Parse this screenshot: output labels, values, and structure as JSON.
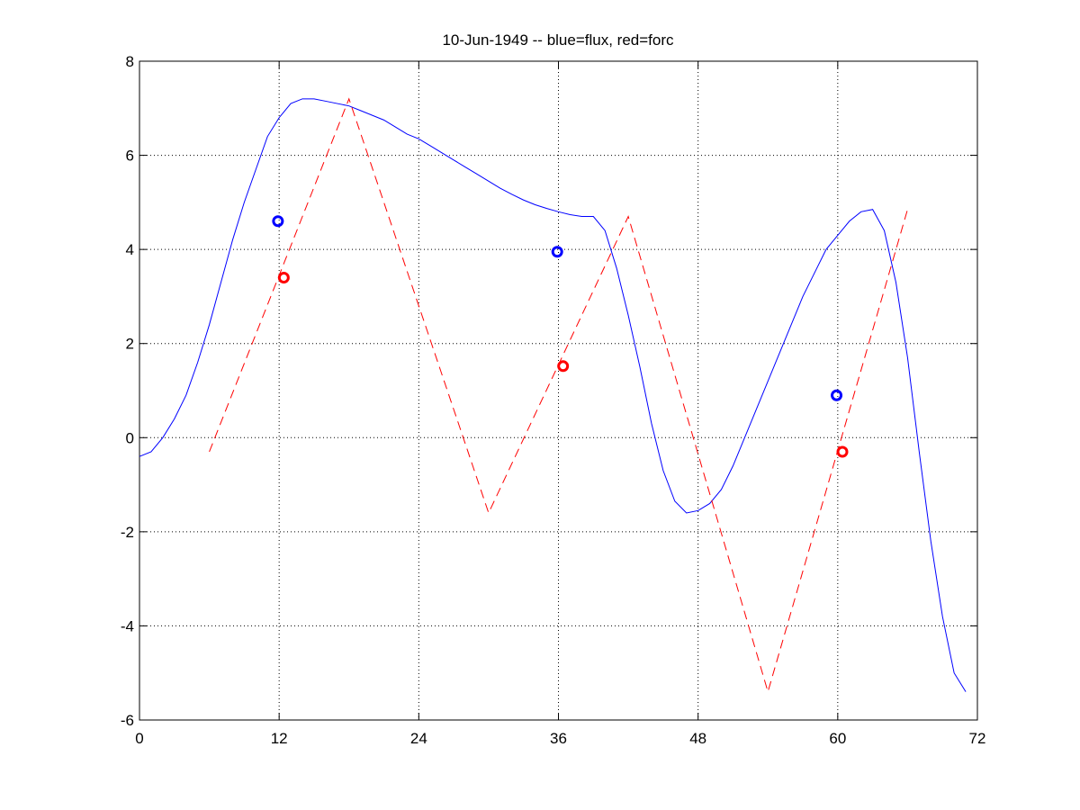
{
  "chart_data": {
    "type": "line",
    "title": "10-Jun-1949 -- blue=flux, red=forc",
    "xlim": [
      0,
      72
    ],
    "xticks": [
      0,
      12,
      24,
      36,
      48,
      60,
      72
    ],
    "ylim": [
      -6,
      8
    ],
    "yticks": [
      -6,
      -4,
      -2,
      0,
      2,
      4,
      6,
      8
    ],
    "grid": true,
    "series": [
      {
        "color": "#0000ff",
        "style": "solid",
        "marker": "none",
        "x": [
          0,
          1,
          2,
          3,
          4,
          5,
          6,
          7,
          8,
          9,
          10,
          11,
          12,
          13,
          14,
          15,
          16,
          17,
          18,
          19,
          20,
          21,
          22,
          23,
          24,
          25,
          26,
          27,
          28,
          29,
          30,
          31,
          32,
          33,
          34,
          35,
          36,
          37,
          38,
          39,
          40,
          41,
          42,
          43,
          44,
          45,
          46,
          47,
          48,
          49,
          50,
          51,
          52,
          53,
          54,
          55,
          56,
          57,
          58,
          59,
          60,
          61,
          62,
          63,
          64,
          65,
          66,
          67,
          68,
          69,
          70,
          71
        ],
        "values": [
          -0.4,
          -0.3,
          0,
          0.4,
          0.9,
          1.6,
          2.4,
          3.3,
          4.2,
          5.0,
          5.7,
          6.4,
          6.8,
          7.1,
          7.2,
          7.2,
          7.15,
          7.1,
          7.05,
          6.95,
          6.85,
          6.75,
          6.6,
          6.45,
          6.35,
          6.2,
          6.05,
          5.9,
          5.75,
          5.6,
          5.45,
          5.3,
          5.17,
          5.05,
          4.95,
          4.87,
          4.8,
          4.74,
          4.7,
          4.7,
          4.4,
          3.6,
          2.6,
          1.5,
          0.3,
          -0.7,
          -1.35,
          -1.6,
          -1.55,
          -1.4,
          -1.1,
          -0.6,
          0,
          0.6,
          1.2,
          1.8,
          2.4,
          3.0,
          3.5,
          4.0,
          4.3,
          4.6,
          4.8,
          4.85,
          4.4,
          3.3,
          1.7,
          -0.3,
          -2.2,
          -3.8,
          -5.0,
          -5.4
        ]
      },
      {
        "color": "#ff0000",
        "style": "dashed",
        "marker": "none",
        "x": [
          6,
          18,
          30,
          42,
          54,
          66
        ],
        "values": [
          -0.3,
          7.2,
          -1.6,
          4.7,
          -5.4,
          4.85
        ]
      },
      {
        "color": "#0000ff",
        "style": "none",
        "marker": "circle",
        "x": [
          11.9,
          35.9,
          59.9
        ],
        "values": [
          4.6,
          3.95,
          0.9
        ]
      },
      {
        "color": "#ff0000",
        "style": "none",
        "marker": "circle",
        "x": [
          12.4,
          36.4,
          60.4
        ],
        "values": [
          3.4,
          1.52,
          -0.3
        ]
      }
    ]
  }
}
